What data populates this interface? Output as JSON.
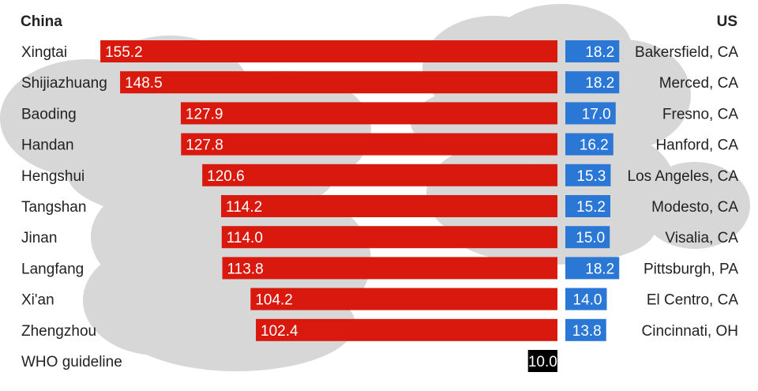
{
  "headers": {
    "left": "China",
    "right": "US"
  },
  "colors": {
    "china_bar": "#d9190d",
    "us_bar": "#2b77d6",
    "who_bar": "#000000",
    "cloud": "#d4d4d4",
    "text": "#222222",
    "bar_text": "#ffffff"
  },
  "chart_data": {
    "type": "bar",
    "orientation": "horizontal-diverging",
    "left_series": {
      "name": "China",
      "categories": [
        "Xingtai",
        "Shijiazhuang",
        "Baoding",
        "Handan",
        "Hengshui",
        "Tangshan",
        "Jinan",
        "Langfang",
        "Xi'an",
        "Zhengzhou"
      ],
      "values": [
        155.2,
        148.5,
        127.9,
        127.8,
        120.6,
        114.2,
        114.0,
        113.8,
        104.2,
        102.4
      ],
      "value_labels": [
        "155.2",
        "148.5",
        "127.9",
        "127.8",
        "120.6",
        "114.2",
        "114.0",
        "113.8",
        "104.2",
        "102.4"
      ]
    },
    "right_series": {
      "name": "US",
      "categories": [
        "Bakersfield, CA",
        "Merced, CA",
        "Fresno, CA",
        "Hanford, CA",
        "Los Angeles, CA",
        "Modesto, CA",
        "Visalia, CA",
        "Pittsburgh, PA",
        "El Centro, CA",
        "Cincinnati, OH"
      ],
      "values": [
        18.2,
        18.2,
        17.0,
        16.2,
        15.3,
        15.2,
        15.0,
        18.2,
        14.0,
        13.8
      ],
      "value_labels": [
        "18.2",
        "18.2",
        "17.0",
        "16.2",
        "15.3",
        "15.2",
        "15.0",
        "18.2",
        "14.0",
        "13.8"
      ]
    },
    "reference": {
      "label": "WHO guideline",
      "value": 10.0,
      "value_label": "10.0"
    }
  }
}
